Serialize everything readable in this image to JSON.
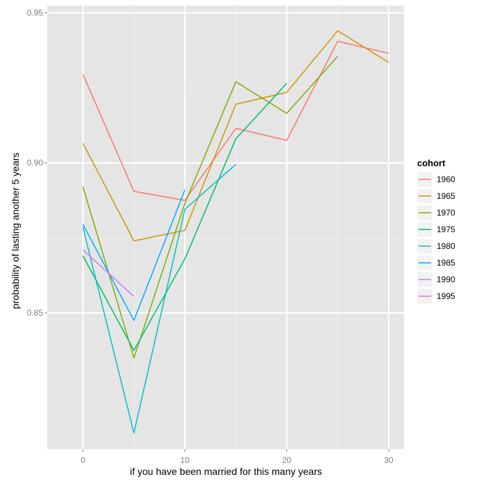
{
  "chart_data": {
    "type": "line",
    "xlabel": "if you have been married for this many years",
    "ylabel": "probability of lasting another 5 years",
    "xlim": [
      -3.5,
      31.5
    ],
    "ylim": [
      0.8046,
      0.9524
    ],
    "x_ticks": [
      0,
      10,
      20,
      30
    ],
    "x_minor_ticks": [
      5,
      15,
      25
    ],
    "y_ticks": [
      0.85,
      0.9,
      0.95
    ],
    "y_tick_labels": [
      "0.85",
      "0.90",
      "0.95"
    ],
    "y_minor_ticks": [
      0.875,
      0.925
    ],
    "grid": true,
    "legend": {
      "title": "cohort",
      "position": "right"
    },
    "series": [
      {
        "name": "1960",
        "color": "#F8766D",
        "x": [
          0,
          5,
          10,
          15,
          20,
          25,
          30
        ],
        "y": [
          0.9295,
          0.8905,
          0.8875,
          0.9115,
          0.9075,
          0.9405,
          0.9365
        ]
      },
      {
        "name": "1965",
        "color": "#CD9600",
        "x": [
          0,
          5,
          10,
          15,
          20,
          25,
          30
        ],
        "y": [
          0.9065,
          0.874,
          0.8775,
          0.9195,
          0.9235,
          0.944,
          0.9335
        ]
      },
      {
        "name": "1970",
        "color": "#7CAE00",
        "x": [
          0,
          5,
          10,
          15,
          20,
          25
        ],
        "y": [
          0.892,
          0.835,
          0.8865,
          0.927,
          0.9165,
          0.9355
        ]
      },
      {
        "name": "1975",
        "color": "#00BE67",
        "x": [
          0,
          5,
          10,
          15,
          20
        ],
        "y": [
          0.869,
          0.8375,
          0.868,
          0.908,
          0.9265
        ]
      },
      {
        "name": "1980",
        "color": "#00BFC4",
        "x": [
          0,
          5,
          10,
          15
        ],
        "y": [
          0.8785,
          0.81,
          0.8845,
          0.8995
        ]
      },
      {
        "name": "1985",
        "color": "#00A9FF",
        "x": [
          0,
          5,
          10
        ],
        "y": [
          0.8795,
          0.8475,
          0.891
        ]
      },
      {
        "name": "1990",
        "color": "#C77CFF",
        "x": [
          0,
          5
        ],
        "y": [
          0.871,
          0.8555
        ]
      },
      {
        "name": "1995",
        "color": "#FF61CC",
        "x": [],
        "y": []
      }
    ]
  },
  "colors": {
    "panel_background": "#E5E5E5",
    "major_grid": "#FFFFFF",
    "minor_grid": "#F2F2F2"
  }
}
